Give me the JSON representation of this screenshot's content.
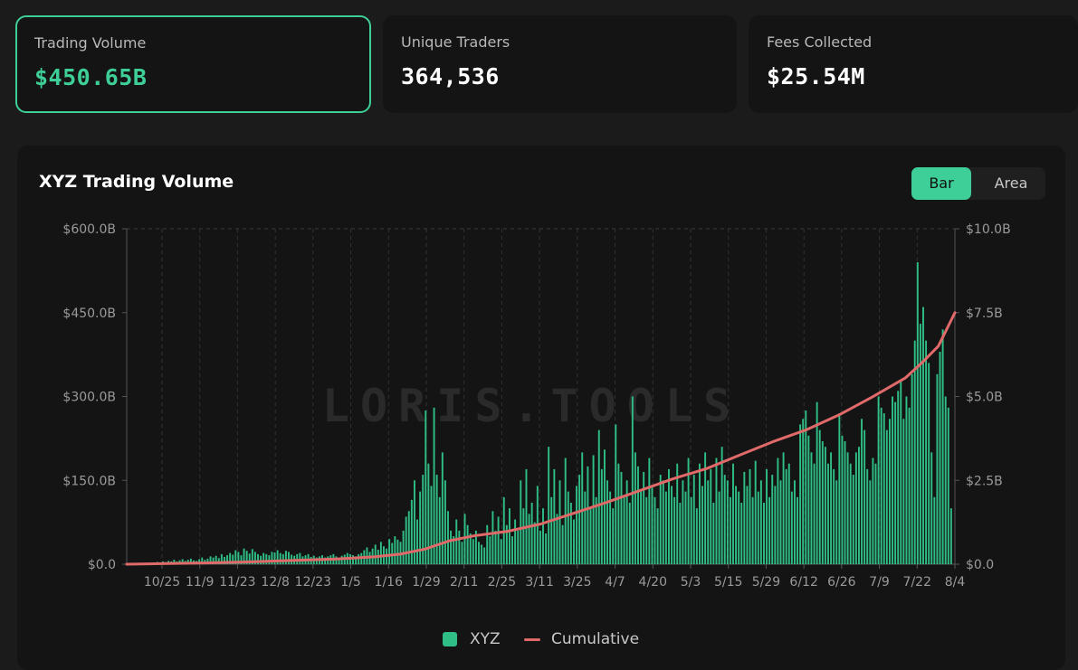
{
  "cards": [
    {
      "label": "Trading Volume",
      "value": "$450.65B",
      "active": true
    },
    {
      "label": "Unique Traders",
      "value": "364,536",
      "active": false
    },
    {
      "label": "Fees Collected",
      "value": "$25.54M",
      "active": false
    }
  ],
  "panel": {
    "title": "XYZ Trading Volume",
    "toggle": {
      "bar_label": "Bar",
      "area_label": "Area",
      "selected": "Bar"
    }
  },
  "watermark": "LORIS.TOOLS",
  "colors": {
    "accent": "#3ecf98",
    "bar": "#2fbf86",
    "cumulative": "#e06a6a",
    "grid": "#3a3a3a"
  },
  "chart_data": {
    "type": "bar",
    "title": "XYZ Trading Volume",
    "x_tick_labels": [
      "10/25",
      "11/9",
      "11/23",
      "12/8",
      "12/23",
      "1/5",
      "1/16",
      "1/29",
      "2/11",
      "2/25",
      "3/11",
      "3/25",
      "4/7",
      "4/20",
      "5/3",
      "5/15",
      "5/29",
      "6/12",
      "6/26",
      "7/9",
      "7/22",
      "8/4"
    ],
    "y_left": {
      "ticks": [
        "$0.0",
        "$150.0B",
        "$300.0B",
        "$450.0B",
        "$600.0B"
      ],
      "range": [
        0,
        600
      ],
      "unit": "B USD"
    },
    "y_right": {
      "ticks": [
        "$0.0",
        "$2.5B",
        "$5.0B",
        "$7.5B",
        "$10.0B"
      ],
      "range": [
        0,
        10
      ],
      "unit": "B USD"
    },
    "legend": [
      "XYZ",
      "Cumulative"
    ],
    "legend_position": "bottom",
    "grid": "vertical dashed",
    "series": [
      {
        "name": "XYZ",
        "axis": "left",
        "description": "daily trading volume (B USD), approx 2 bars per tick interval",
        "values": [
          0,
          0,
          0,
          1,
          1,
          1,
          2,
          1,
          2,
          3,
          4,
          3,
          5,
          4,
          6,
          5,
          8,
          5,
          7,
          9,
          6,
          8,
          10,
          7,
          6,
          9,
          12,
          8,
          10,
          14,
          12,
          15,
          11,
          18,
          13,
          16,
          20,
          17,
          25,
          22,
          16,
          28,
          24,
          19,
          27,
          22,
          18,
          15,
          20,
          18,
          16,
          22,
          21,
          25,
          20,
          18,
          24,
          22,
          17,
          15,
          18,
          20,
          14,
          16,
          18,
          13,
          15,
          12,
          14,
          16,
          12,
          14,
          16,
          18,
          14,
          12,
          15,
          17,
          20,
          18,
          16,
          14,
          18,
          20,
          25,
          30,
          22,
          28,
          35,
          26,
          40,
          32,
          28,
          45,
          38,
          50,
          44,
          40,
          60,
          85,
          95,
          115,
          150,
          80,
          130,
          160,
          275,
          180,
          140,
          280,
          160,
          120,
          200,
          150,
          95,
          60,
          50,
          80,
          60,
          40,
          90,
          70,
          55,
          45,
          60,
          40,
          35,
          30,
          70,
          50,
          95,
          60,
          85,
          45,
          120,
          70,
          100,
          50,
          80,
          60,
          150,
          100,
          170,
          90,
          110,
          75,
          140,
          60,
          100,
          55,
          210,
          120,
          170,
          90,
          150,
          70,
          190,
          130,
          110,
          80,
          140,
          160,
          200,
          130,
          175,
          100,
          195,
          120,
          240,
          170,
          205,
          150,
          130,
          100,
          250,
          180,
          165,
          120,
          150,
          110,
          300,
          200,
          175,
          130,
          165,
          120,
          190,
          140,
          120,
          100,
          160,
          150,
          130,
          170,
          140,
          120,
          180,
          110,
          150,
          130,
          190,
          120,
          160,
          100,
          180,
          140,
          200,
          150,
          170,
          110,
          190,
          130,
          210,
          160,
          150,
          120,
          180,
          140,
          130,
          110,
          165,
          140,
          170,
          120,
          185,
          130,
          150,
          110,
          170,
          120,
          160,
          140,
          190,
          150,
          200,
          170,
          180,
          130,
          150,
          120,
          250,
          260,
          275,
          230,
          200,
          180,
          290,
          240,
          220,
          210,
          180,
          200,
          170,
          150,
          270,
          230,
          220,
          200,
          180,
          160,
          200,
          210,
          260,
          240,
          170,
          150,
          190,
          180,
          300,
          280,
          270,
          240,
          260,
          300,
          290,
          310,
          330,
          260,
          300,
          280,
          340,
          400,
          540,
          430,
          460,
          400,
          360,
          200,
          120,
          340,
          380,
          420,
          300,
          280,
          100
        ]
      },
      {
        "name": "Cumulative",
        "axis": "right",
        "type": "line",
        "points": [
          [
            0,
            0
          ],
          [
            0.05,
            0.02
          ],
          [
            0.1,
            0.04
          ],
          [
            0.15,
            0.07
          ],
          [
            0.2,
            0.11
          ],
          [
            0.25,
            0.15
          ],
          [
            0.3,
            0.22
          ],
          [
            0.33,
            0.3
          ],
          [
            0.36,
            0.45
          ],
          [
            0.39,
            0.7
          ],
          [
            0.42,
            0.85
          ],
          [
            0.46,
            0.98
          ],
          [
            0.5,
            1.2
          ],
          [
            0.54,
            1.52
          ],
          [
            0.58,
            1.85
          ],
          [
            0.62,
            2.2
          ],
          [
            0.66,
            2.55
          ],
          [
            0.7,
            2.85
          ],
          [
            0.74,
            3.25
          ],
          [
            0.78,
            3.65
          ],
          [
            0.82,
            4.0
          ],
          [
            0.86,
            4.45
          ],
          [
            0.9,
            4.98
          ],
          [
            0.94,
            5.55
          ],
          [
            0.96,
            6.0
          ],
          [
            0.98,
            6.5
          ],
          [
            1.0,
            7.5
          ]
        ]
      }
    ]
  }
}
